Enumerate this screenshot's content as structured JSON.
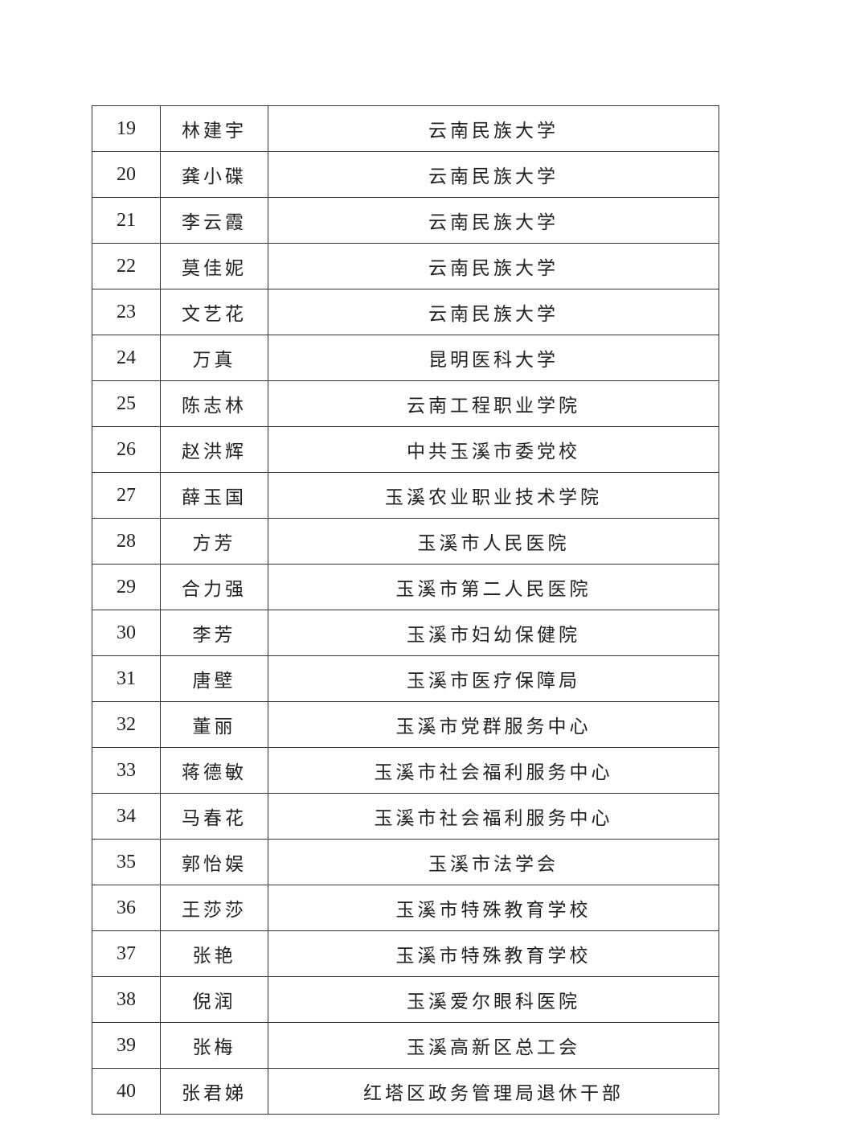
{
  "rows": [
    {
      "no": "19",
      "name": "林建宇",
      "unit": "云南民族大学"
    },
    {
      "no": "20",
      "name": "龚小碟",
      "unit": "云南民族大学"
    },
    {
      "no": "21",
      "name": "李云霞",
      "unit": "云南民族大学"
    },
    {
      "no": "22",
      "name": "莫佳妮",
      "unit": "云南民族大学"
    },
    {
      "no": "23",
      "name": "文艺花",
      "unit": "云南民族大学"
    },
    {
      "no": "24",
      "name": "万真",
      "unit": "昆明医科大学"
    },
    {
      "no": "25",
      "name": "陈志林",
      "unit": "云南工程职业学院"
    },
    {
      "no": "26",
      "name": "赵洪辉",
      "unit": "中共玉溪市委党校"
    },
    {
      "no": "27",
      "name": "薛玉国",
      "unit": "玉溪农业职业技术学院"
    },
    {
      "no": "28",
      "name": "方芳",
      "unit": "玉溪市人民医院"
    },
    {
      "no": "29",
      "name": "合力强",
      "unit": "玉溪市第二人民医院"
    },
    {
      "no": "30",
      "name": "李芳",
      "unit": "玉溪市妇幼保健院"
    },
    {
      "no": "31",
      "name": "唐壁",
      "unit": "玉溪市医疗保障局"
    },
    {
      "no": "32",
      "name": "董丽",
      "unit": "玉溪市党群服务中心"
    },
    {
      "no": "33",
      "name": "蒋德敏",
      "unit": "玉溪市社会福利服务中心"
    },
    {
      "no": "34",
      "name": "马春花",
      "unit": "玉溪市社会福利服务中心"
    },
    {
      "no": "35",
      "name": "郭怡娱",
      "unit": "玉溪市法学会"
    },
    {
      "no": "36",
      "name": "王莎莎",
      "unit": "玉溪市特殊教育学校"
    },
    {
      "no": "37",
      "name": "张艳",
      "unit": "玉溪市特殊教育学校"
    },
    {
      "no": "38",
      "name": "倪润",
      "unit": "玉溪爱尔眼科医院"
    },
    {
      "no": "39",
      "name": "张梅",
      "unit": "玉溪高新区总工会"
    },
    {
      "no": "40",
      "name": "张君娣",
      "unit": "红塔区政务管理局退休干部"
    }
  ]
}
